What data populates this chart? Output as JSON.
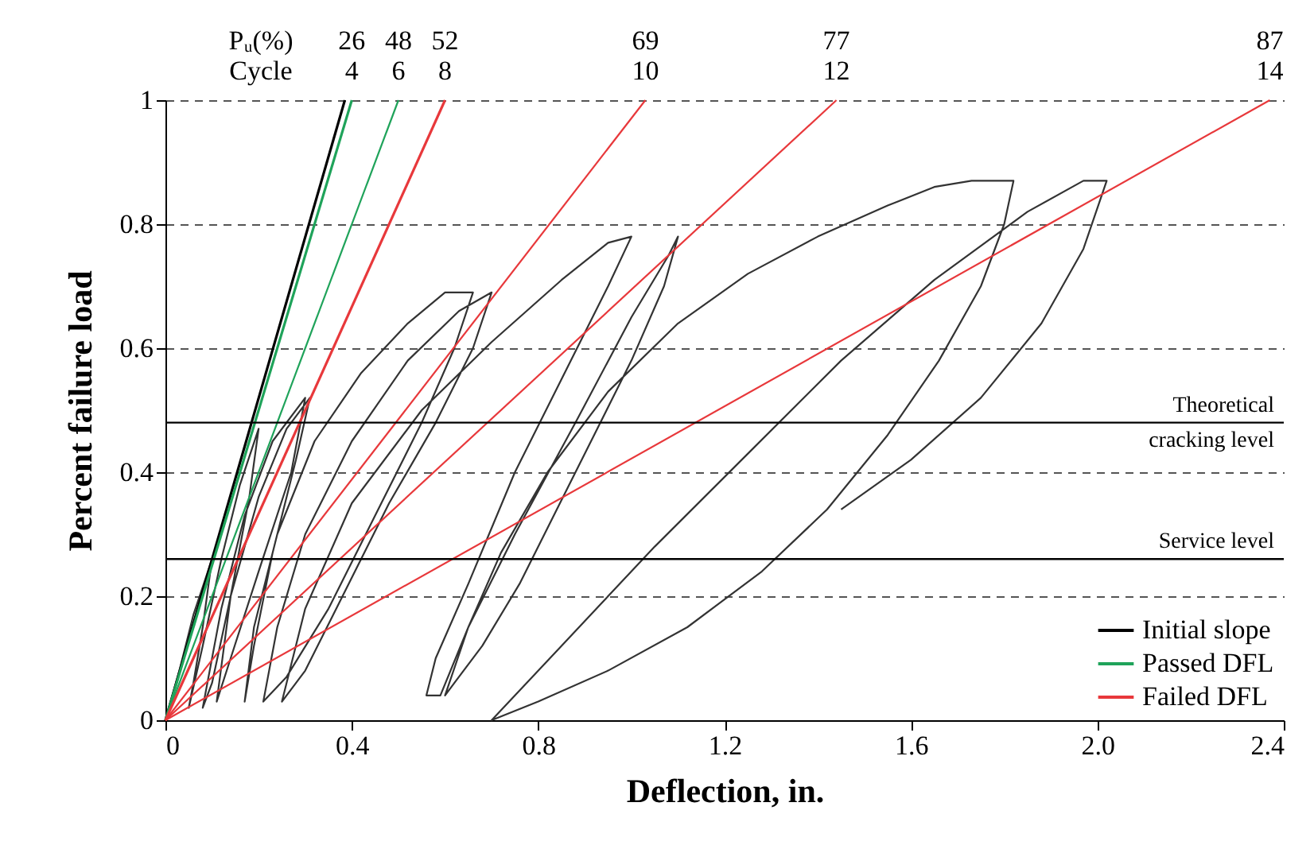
{
  "chart_data": {
    "type": "line",
    "xlabel": "Deflection, in.",
    "ylabel": "Percent failure load",
    "xlim": [
      0,
      2.4
    ],
    "xticks": [
      0,
      0.4,
      0.8,
      1.2,
      1.6,
      {
        "value": 2,
        "label": "2.0"
      },
      2.4
    ],
    "ylim": [
      0,
      1
    ],
    "yticks": [
      0,
      0.2,
      0.4,
      0.6,
      0.8,
      1
    ],
    "grid": "y",
    "legend": "bottom right",
    "ref_lines": [
      {
        "axis": "y",
        "value": 0.48,
        "label": "Theoretical cracking level",
        "color": "#000000"
      },
      {
        "axis": "y",
        "value": 0.26,
        "label": "Service level",
        "color": "#000000"
      }
    ],
    "annotations": [
      "Pᵤ(%)",
      "Cycle",
      {
        "text": "26",
        "x": 0.4,
        "y": 1
      },
      {
        "text": "4",
        "x": 0.4,
        "y": 1
      },
      {
        "text": "48",
        "x": 0.5,
        "y": 1
      },
      {
        "text": "6",
        "x": 0.5,
        "y": 1
      },
      {
        "text": "52",
        "x": 0.6,
        "y": 1
      },
      {
        "text": "8",
        "x": 0.6,
        "y": 1
      },
      {
        "text": "69",
        "x": 1.03,
        "y": 1
      },
      {
        "text": "10",
        "x": 1.03,
        "y": 1
      },
      {
        "text": "77",
        "x": 1.44,
        "y": 1
      },
      {
        "text": "12",
        "x": 1.44,
        "y": 1
      },
      {
        "text": "87",
        "x": 2.37,
        "y": 1
      },
      {
        "text": "14",
        "x": 2.37,
        "y": 1
      }
    ],
    "series": [
      {
        "color": "#333333",
        "x": [
          0,
          0.03,
          0.06,
          0.1,
          0.08,
          0.06,
          0.05,
          0.08,
          0.12,
          0.16,
          0.2,
          0.18,
          0.14,
          0.1,
          0.08,
          0.12,
          0.17,
          0.23,
          0.3,
          0.27,
          0.2,
          0.14,
          0.11,
          0.14,
          0.2,
          0.26,
          0.31,
          0.28,
          0.23,
          0.19,
          0.17,
          0.19,
          0.24,
          0.32,
          0.42,
          0.52,
          0.6,
          0.66,
          0.62,
          0.55,
          0.45,
          0.35,
          0.26,
          0.21,
          0.24,
          0.3,
          0.4,
          0.52,
          0.63,
          0.7,
          0.66,
          0.58,
          0.48,
          0.38,
          0.3,
          0.25,
          0.3,
          0.4,
          0.55,
          0.7,
          0.85,
          0.95,
          1.0,
          0.95,
          0.85,
          0.75,
          0.65,
          0.58,
          0.56,
          0.59,
          0.65,
          0.75,
          0.88,
          1.0,
          1.08,
          1.1,
          1.07,
          1.0,
          0.92,
          0.84,
          0.76,
          0.68,
          0.62,
          0.6,
          0.65,
          0.72,
          0.82,
          0.95,
          1.1,
          1.25,
          1.4,
          1.55,
          1.65,
          1.73,
          1.82,
          1.8,
          1.75,
          1.66,
          1.55,
          1.42,
          1.28,
          1.12,
          0.95,
          0.8,
          0.7,
          0.85,
          1.05,
          1.25,
          1.45,
          1.65,
          1.85,
          1.97,
          2.02,
          1.97,
          1.88,
          1.75,
          1.6,
          1.45
        ],
        "values": [
          0,
          0.08,
          0.17,
          0.26,
          0.15,
          0.06,
          0.02,
          0.12,
          0.26,
          0.38,
          0.47,
          0.36,
          0.2,
          0.06,
          0.02,
          0.18,
          0.33,
          0.45,
          0.52,
          0.4,
          0.24,
          0.1,
          0.03,
          0.2,
          0.36,
          0.47,
          0.52,
          0.42,
          0.27,
          0.12,
          0.03,
          0.15,
          0.3,
          0.45,
          0.56,
          0.64,
          0.69,
          0.69,
          0.6,
          0.48,
          0.33,
          0.18,
          0.07,
          0.03,
          0.15,
          0.3,
          0.45,
          0.58,
          0.66,
          0.69,
          0.6,
          0.48,
          0.35,
          0.2,
          0.08,
          0.03,
          0.18,
          0.35,
          0.5,
          0.61,
          0.71,
          0.77,
          0.78,
          0.7,
          0.55,
          0.4,
          0.22,
          0.1,
          0.04,
          0.04,
          0.15,
          0.3,
          0.48,
          0.65,
          0.75,
          0.78,
          0.7,
          0.58,
          0.46,
          0.34,
          0.22,
          0.12,
          0.06,
          0.04,
          0.15,
          0.27,
          0.4,
          0.53,
          0.64,
          0.72,
          0.78,
          0.83,
          0.86,
          0.87,
          0.87,
          0.8,
          0.7,
          0.58,
          0.46,
          0.34,
          0.24,
          0.15,
          0.08,
          0.03,
          0,
          0.12,
          0.28,
          0.43,
          0.58,
          0.71,
          0.82,
          0.87,
          0.87,
          0.76,
          0.64,
          0.52,
          0.42,
          0.34
        ]
      },
      {
        "name": "Initial slope",
        "color": "#000000",
        "x": [
          0,
          0.385
        ],
        "values": [
          0,
          1
        ]
      },
      {
        "name": "Passed DFL",
        "color": "#1fa35a",
        "x": [
          0,
          0.4
        ],
        "values": [
          0,
          1
        ]
      },
      {
        "color": "#1fa35a",
        "x": [
          0,
          0.5
        ],
        "values": [
          0,
          1
        ]
      },
      {
        "name": "Failed DFL",
        "color": "#e8383b",
        "x": [
          0,
          0.6
        ],
        "values": [
          0,
          1
        ]
      },
      {
        "color": "#e8383b",
        "x": [
          0,
          1.03
        ],
        "values": [
          0,
          1
        ]
      },
      {
        "color": "#e8383b",
        "x": [
          0,
          1.44
        ],
        "values": [
          0,
          1
        ]
      },
      {
        "color": "#e8383b",
        "x": [
          0,
          2.37
        ],
        "values": [
          0,
          1
        ]
      }
    ]
  }
}
